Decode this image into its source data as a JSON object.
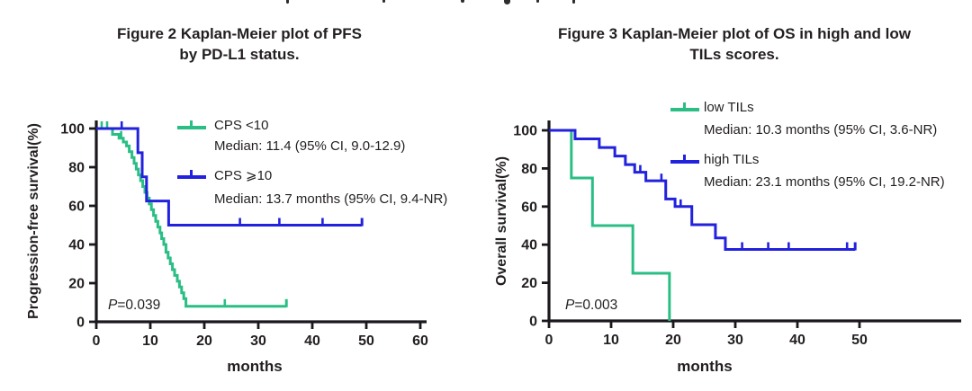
{
  "page": {
    "background": "#ffffff",
    "axis_color": "#1b181d",
    "text_color": "#231F20"
  },
  "top_clipped_text_fragment": {
    "description": "bottom edges of a clipped text line, illegible"
  },
  "figures": [
    {
      "title_line1": "Figure 2 Kaplan-Meier plot of PFS",
      "title_line2": "by PD-L1 status.",
      "ylabel": "Progression-free survival(%)",
      "xlabel": "months",
      "p_label": "P",
      "p_value": "=0.039",
      "legend": [
        {
          "label": "CPS <10",
          "median": "Median: 11.4 (95% CI, 9.0-12.9)"
        },
        {
          "label": "CPS ⩾10",
          "median": "Median: 13.7 months (95% CI, 9.4-NR)"
        }
      ]
    },
    {
      "title_line1": "Figure 3 Kaplan-Meier plot of OS in high and low",
      "title_line2": "TILs scores.",
      "ylabel": "Overall survival(%)",
      "xlabel": "months",
      "p_label": "P",
      "p_value": "=0.003",
      "legend": [
        {
          "label": "low TILs",
          "median": "Median: 10.3 months (95% CI, 3.6-NR)"
        },
        {
          "label": "high TILs",
          "median": "Median: 23.1 months (95% CI, 19.2-NR)"
        }
      ]
    }
  ],
  "chart_data": [
    {
      "id": "pfs",
      "type": "line",
      "subtype": "kaplan-meier-step",
      "title": "Figure 2 Kaplan-Meier plot of PFS by PD-L1 status.",
      "xlabel": "months",
      "ylabel": "Progression-free survival(%)",
      "xlim": [
        0,
        60
      ],
      "ylim": [
        0,
        100
      ],
      "xticks": [
        0,
        10,
        20,
        30,
        40,
        50,
        60
      ],
      "yticks": [
        0,
        20,
        40,
        60,
        80,
        100
      ],
      "grid": false,
      "legend_position": "upper right inside",
      "annotation": "P=0.039",
      "series": [
        {
          "name": "CPS <10",
          "median": "11.4 (95% CI, 9.0-12.9)",
          "color": "#2ABE85",
          "points": [
            [
              0,
              100
            ],
            [
              3,
              97
            ],
            [
              4.2,
              95
            ],
            [
              5,
              93
            ],
            [
              5.6,
              91
            ],
            [
              6.1,
              88
            ],
            [
              6.6,
              85
            ],
            [
              7,
              82
            ],
            [
              7.4,
              79
            ],
            [
              7.8,
              76
            ],
            [
              8.2,
              73
            ],
            [
              8.6,
              70
            ],
            [
              9,
              67
            ],
            [
              9.4,
              64
            ],
            [
              9.8,
              61
            ],
            [
              10.2,
              58
            ],
            [
              10.6,
              55
            ],
            [
              11,
              52
            ],
            [
              11.4,
              49
            ],
            [
              11.8,
              46
            ],
            [
              12.1,
              43
            ],
            [
              12.5,
              40
            ],
            [
              12.9,
              36
            ],
            [
              13.3,
              33
            ],
            [
              13.7,
              30
            ],
            [
              14.1,
              27
            ],
            [
              14.5,
              24
            ],
            [
              15,
              21
            ],
            [
              15.4,
              18
            ],
            [
              15.8,
              15
            ],
            [
              16.2,
              12
            ],
            [
              16.6,
              8
            ]
          ],
          "end": 35.2,
          "end_tick": true,
          "censors": [
            [
              1.0,
              100
            ],
            [
              2.0,
              100
            ],
            [
              4.6,
              95
            ],
            [
              23.8,
              8
            ]
          ]
        },
        {
          "name": "CPS ⩾10",
          "median": "13.7 months (95% CI, 9.4-NR)",
          "color": "#2121DE",
          "points": [
            [
              0,
              100
            ],
            [
              7.7,
              87.5
            ],
            [
              8.5,
              75
            ],
            [
              9.3,
              62.5
            ],
            [
              13.4,
              50
            ]
          ],
          "end": 49.2,
          "end_tick": true,
          "censors": [
            [
              4.7,
              100
            ],
            [
              26.6,
              50
            ],
            [
              33.9,
              50
            ],
            [
              41.9,
              50
            ]
          ]
        }
      ]
    },
    {
      "id": "os",
      "type": "line",
      "subtype": "kaplan-meier-step",
      "title": "Figure 3 Kaplan-Meier plot of OS in high and low TILs scores.",
      "xlabel": "months",
      "ylabel": "Overall survival(%)",
      "xlim": [
        0,
        50
      ],
      "ylim": [
        0,
        100
      ],
      "xticks": [
        0,
        10,
        20,
        30,
        40,
        50
      ],
      "yticks": [
        0,
        20,
        40,
        60,
        80,
        100
      ],
      "grid": false,
      "legend_position": "upper right inside",
      "annotation": "P=0.003",
      "series": [
        {
          "name": "low TILs",
          "median": "10.3 months (95% CI, 3.6-NR)",
          "color": "#2ABE85",
          "points": [
            [
              0,
              100
            ],
            [
              3.6,
              75
            ],
            [
              7,
              50
            ],
            [
              13.5,
              25
            ],
            [
              19.4,
              0
            ]
          ],
          "end": 19.4,
          "end_tick": false,
          "censors": []
        },
        {
          "name": "high TILs",
          "median": "23.1 months (95% CI, 19.2-NR)",
          "color": "#2121DE",
          "points": [
            [
              0,
              100
            ],
            [
              4.2,
              95.5
            ],
            [
              8.1,
              91
            ],
            [
              10.6,
              86.5
            ],
            [
              12.3,
              82
            ],
            [
              13.8,
              78
            ],
            [
              15.6,
              73.5
            ],
            [
              18.8,
              64
            ],
            [
              20.3,
              60
            ],
            [
              23,
              50.5
            ],
            [
              26.8,
              43.5
            ],
            [
              28.4,
              37.5
            ]
          ],
          "end": 49.3,
          "end_tick": true,
          "censors": [
            [
              14.7,
              78
            ],
            [
              18.1,
              73.5
            ],
            [
              21.2,
              60
            ],
            [
              31.1,
              37.5
            ],
            [
              35.3,
              37.5
            ],
            [
              38.6,
              37.5
            ],
            [
              48,
              37.5
            ]
          ]
        }
      ]
    }
  ]
}
